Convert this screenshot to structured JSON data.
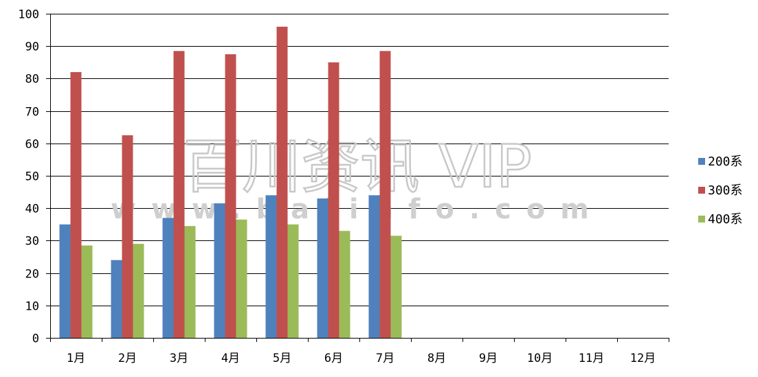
{
  "chart_data": {
    "type": "bar",
    "categories": [
      "1月",
      "2月",
      "3月",
      "4月",
      "5月",
      "6月",
      "7月",
      "8月",
      "9月",
      "10月",
      "11月",
      "12月"
    ],
    "series": [
      {
        "name": "200系",
        "color": "#4f81bd",
        "values": [
          35,
          24,
          37,
          41.5,
          44,
          43,
          44,
          null,
          null,
          null,
          null,
          null
        ]
      },
      {
        "name": "300系",
        "color": "#c0504d",
        "values": [
          82,
          62.5,
          88.5,
          87.5,
          96,
          85,
          88.5,
          null,
          null,
          null,
          null,
          null
        ]
      },
      {
        "name": "400系",
        "color": "#9bbb59",
        "values": [
          28.5,
          29,
          34.5,
          36.5,
          35,
          33,
          31.5,
          null,
          null,
          null,
          null,
          null
        ]
      }
    ],
    "yticks": [
      0,
      10,
      20,
      30,
      40,
      50,
      60,
      70,
      80,
      90,
      100
    ],
    "ylim": [
      0,
      100
    ],
    "grid": true,
    "legend_position": "right",
    "title": "",
    "xlabel": "",
    "ylabel": ""
  },
  "watermark": {
    "main": "百川资讯 VIP",
    "sub": "www.baiinfo.com"
  }
}
